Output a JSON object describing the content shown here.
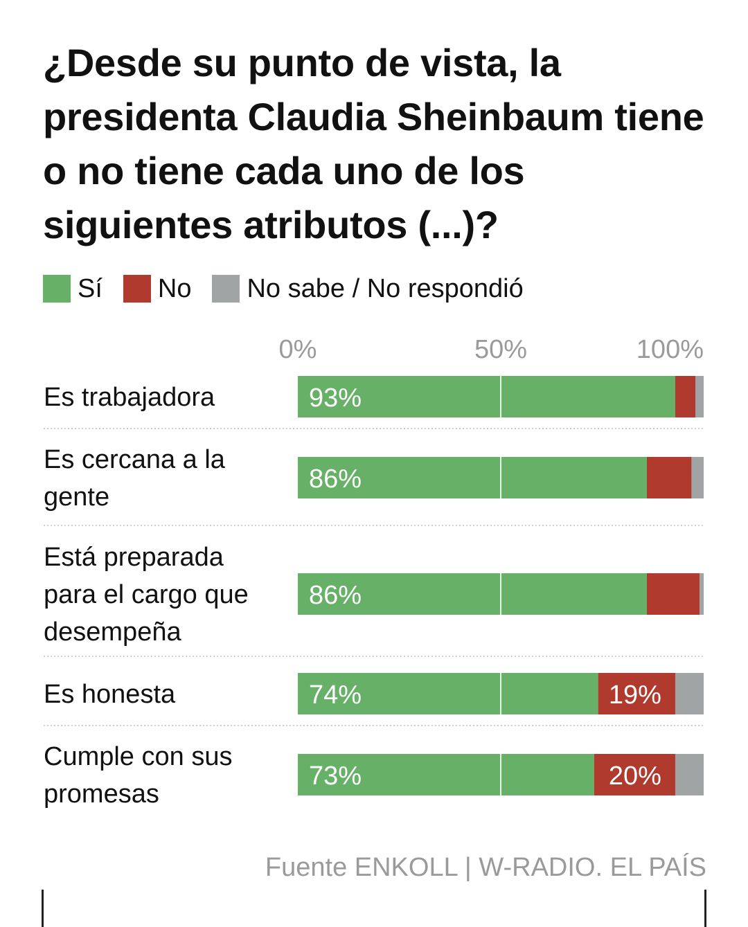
{
  "title": "¿Desde su punto de vista, la presidenta Claudia Sheinbaum tiene o no tiene cada uno de los siguientes atributos (...)?",
  "legend": [
    {
      "label": "Sí",
      "color": "#66b067"
    },
    {
      "label": "No",
      "color": "#b03a2e"
    },
    {
      "label": "No sabe / No respondió",
      "color": "#a1a4a5"
    }
  ],
  "source": "Fuente ENKOLL | W-RADIO. EL PAÍS",
  "chart_data": {
    "type": "bar",
    "orientation": "horizontal",
    "stacked": true,
    "xlim": [
      0,
      100
    ],
    "x_ticks": [
      "0%",
      "50%",
      "100%"
    ],
    "categories": [
      "Es trabajadora",
      "Es cercana a la gente",
      "Está preparada para el cargo que desempeña",
      "Es honesta",
      "Cumple con sus promesas"
    ],
    "category_lines": [
      [
        "Es trabajadora"
      ],
      [
        "Es cercana a la",
        "gente"
      ],
      [
        "Está preparada",
        "para el cargo que",
        "desempeña"
      ],
      [
        "Es honesta"
      ],
      [
        "Cumple con sus",
        "promesas"
      ]
    ],
    "series": [
      {
        "name": "Sí",
        "values": [
          93,
          86,
          86,
          74,
          73
        ],
        "labels": [
          "93%",
          "86%",
          "86%",
          "74%",
          "73%"
        ]
      },
      {
        "name": "No",
        "values": [
          5,
          11,
          13,
          19,
          20
        ],
        "labels": [
          "",
          "",
          "",
          "19%",
          "20%"
        ]
      },
      {
        "name": "No sabe / No respondió",
        "values": [
          2,
          3,
          1,
          7,
          7
        ],
        "labels": [
          "",
          "",
          "",
          "",
          ""
        ]
      }
    ]
  }
}
